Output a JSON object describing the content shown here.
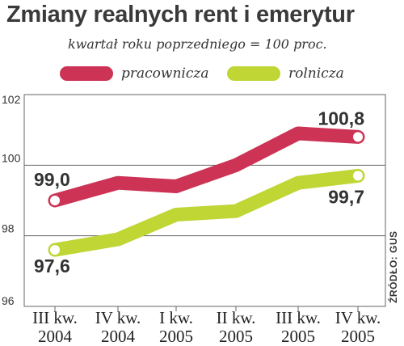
{
  "header": {
    "title": "Zmiany realnych rent i emerytur",
    "subtitle": "kwartał roku poprzedniego = 100 proc."
  },
  "source": "ŹRÓDŁO: GUS",
  "chart_data": {
    "type": "line",
    "categories": [
      [
        "III kw.",
        "2004"
      ],
      [
        "IV kw.",
        "2004"
      ],
      [
        "I kw.",
        "2005"
      ],
      [
        "II kw.",
        "2005"
      ],
      [
        "III kw.",
        "2005"
      ],
      [
        "IV kw.",
        "2005"
      ]
    ],
    "ylim": [
      96,
      102
    ],
    "yticks": [
      "96",
      "98",
      "100",
      "102"
    ],
    "grid": true,
    "legend_position": "top",
    "series": [
      {
        "name": "pracownicza",
        "color": "#cc3355",
        "values": [
          99.0,
          99.5,
          99.4,
          100.0,
          100.9,
          100.8
        ],
        "labels": [
          {
            "index": 0,
            "text": "99,0"
          },
          {
            "index": 5,
            "text": "100,8"
          }
        ]
      },
      {
        "name": "rolnicza",
        "color": "#bfd634",
        "values": [
          97.6,
          97.9,
          98.6,
          98.7,
          99.5,
          99.7
        ],
        "labels": [
          {
            "index": 0,
            "text": "97,6"
          },
          {
            "index": 5,
            "text": "99,7"
          }
        ]
      }
    ]
  }
}
